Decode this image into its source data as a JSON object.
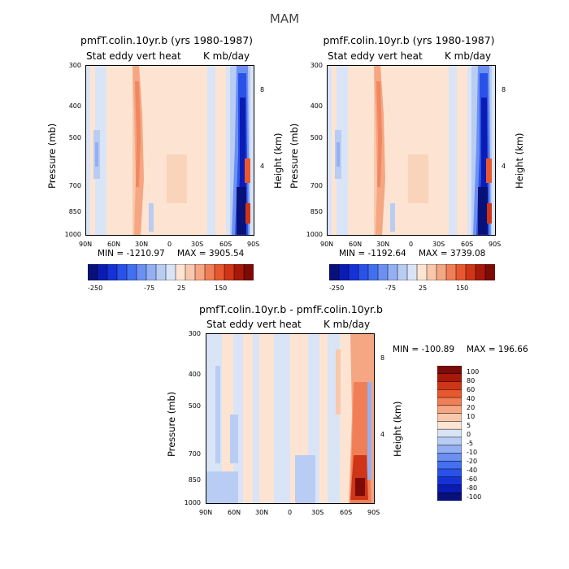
{
  "season_title": "MAM",
  "common": {
    "variable_label": "Stat eddy vert heat",
    "units": "K mb/day",
    "y_label": "Pressure (mb)",
    "y2_label": "Height (km)",
    "x_ticks": [
      "90N",
      "60N",
      "30N",
      "0",
      "30S",
      "60S",
      "90S"
    ],
    "y_ticks": [
      "300",
      "400",
      "500",
      "700",
      "850",
      "1000"
    ],
    "y2_ticks": [
      "8",
      "4"
    ]
  },
  "colors": {
    "blues": [
      "#08117a",
      "#0a1cb4",
      "#1632d6",
      "#2a52e8",
      "#4370f0",
      "#6b90f2",
      "#94b0f2",
      "#b9ccf3",
      "#d9e4f6"
    ],
    "reds": [
      "#fde4d2",
      "#f9c8ac",
      "#f5a683",
      "#f07f57",
      "#e8582f",
      "#cf3517",
      "#a81808",
      "#7c0a06"
    ]
  },
  "panels": [
    {
      "id": "a",
      "title": "pmfT.colin.10yr.b (yrs 1980-1987)",
      "min_text": "MIN = -1210.97",
      "max_text": "MAX = 3905.54",
      "colorbar_labels": [
        "-250",
        "-75",
        "25",
        "150"
      ]
    },
    {
      "id": "b",
      "title": "pmfF.colin.10yr.b (yrs 1980-1987)",
      "min_text": "MIN = -1192.64",
      "max_text": "MAX = 3739.08",
      "colorbar_labels": [
        "-250",
        "-75",
        "25",
        "150"
      ]
    },
    {
      "id": "c",
      "title": "pmfT.colin.10yr.b - pmfF.colin.10yr.b",
      "min_text": "MIN = -100.89",
      "max_text": "MAX = 196.66",
      "colorbar_labels": [
        "100",
        "80",
        "60",
        "40",
        "20",
        "10",
        "5",
        "0",
        "-5",
        "-10",
        "-20",
        "-40",
        "-60",
        "-80",
        "-100"
      ]
    }
  ],
  "chart_data": [
    {
      "type": "heatmap",
      "title": "pmfT.colin.10yr.b (yrs 1980-1987)",
      "subtitle": "Stat eddy vert heat",
      "units": "K mb/day",
      "xlabel": "",
      "ylabel": "Pressure (mb)",
      "y2label": "Height (km)",
      "x_ticks": [
        "90N",
        "60N",
        "30N",
        "0",
        "30S",
        "60S",
        "90S"
      ],
      "y_ticks": [
        300,
        400,
        500,
        700,
        850,
        1000
      ],
      "min": -1210.97,
      "max": 3905.54,
      "legend_levels": [
        -250,
        -75,
        25,
        150
      ]
    },
    {
      "type": "heatmap",
      "title": "pmfF.colin.10yr.b (yrs 1980-1987)",
      "subtitle": "Stat eddy vert heat",
      "units": "K mb/day",
      "xlabel": "",
      "ylabel": "Pressure (mb)",
      "y2label": "Height (km)",
      "x_ticks": [
        "90N",
        "60N",
        "30N",
        "0",
        "30S",
        "60S",
        "90S"
      ],
      "y_ticks": [
        300,
        400,
        500,
        700,
        850,
        1000
      ],
      "min": -1192.64,
      "max": 3739.08,
      "legend_levels": [
        -250,
        -75,
        25,
        150
      ]
    },
    {
      "type": "heatmap",
      "title": "pmfT.colin.10yr.b - pmfF.colin.10yr.b",
      "subtitle": "Stat eddy vert heat",
      "units": "K mb/day",
      "xlabel": "",
      "ylabel": "Pressure (mb)",
      "y2label": "Height (km)",
      "x_ticks": [
        "90N",
        "60N",
        "30N",
        "0",
        "30S",
        "60S",
        "90S"
      ],
      "y_ticks": [
        300,
        400,
        500,
        700,
        850,
        1000
      ],
      "min": -100.89,
      "max": 196.66,
      "legend_levels": [
        -100,
        -80,
        -60,
        -40,
        -20,
        -10,
        -5,
        0,
        5,
        10,
        20,
        40,
        60,
        80,
        100
      ]
    }
  ]
}
